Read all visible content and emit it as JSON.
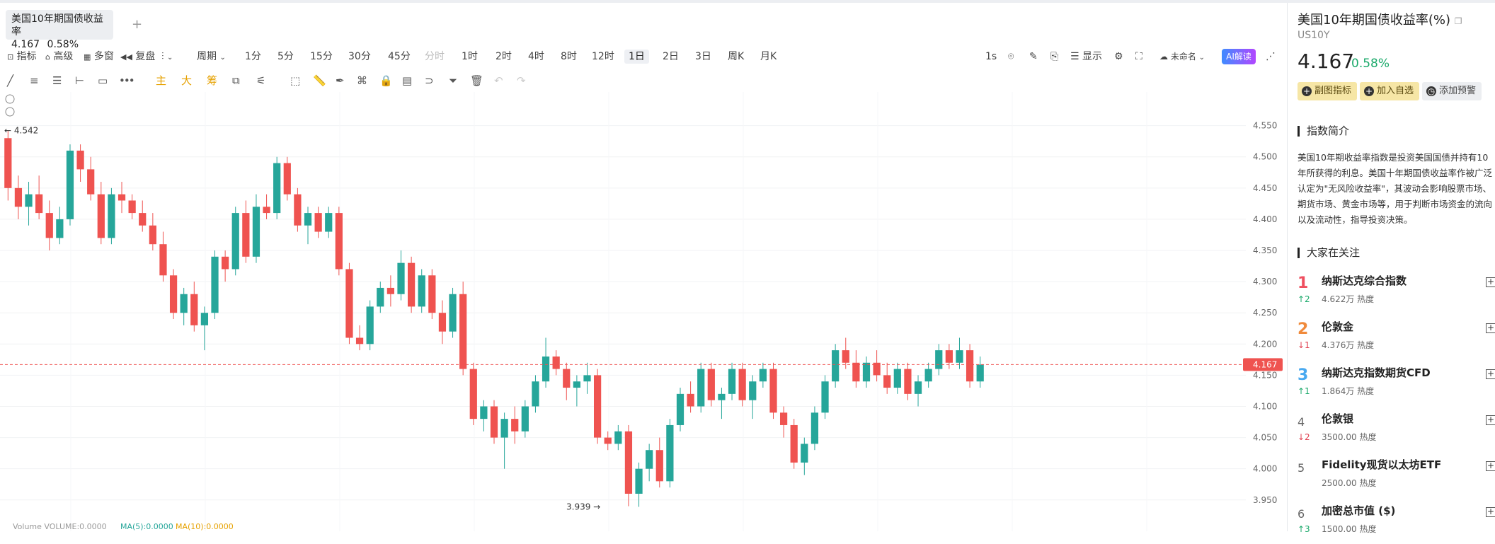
{
  "tab": {
    "name": "美国10年期国债收益率",
    "price": "4.167",
    "change": "0.58%"
  },
  "toolbar": {
    "indicator": "指标",
    "advanced": "高级",
    "multi_window": "多窗",
    "replay": "复盘",
    "period": "周期",
    "intervals": [
      "分时",
      "1分",
      "5分",
      "15分",
      "30分",
      "45分",
      "1时",
      "2时",
      "4时",
      "8时",
      "12时",
      "1日",
      "2日",
      "3日",
      "周K",
      "月K"
    ],
    "active_interval": "1日",
    "refresh": "1s",
    "display": "显示",
    "unnamed": "未命名",
    "ai": "AI解读"
  },
  "drawbar": {
    "main": "主",
    "big": "大",
    "chips": "筹"
  },
  "chart_data": {
    "type": "candlestick",
    "y_ticks": [
      "4.550",
      "4.500",
      "4.450",
      "4.400",
      "4.350",
      "4.300",
      "4.250",
      "4.200",
      "4.150",
      "4.100",
      "4.050",
      "4.000",
      "3.950"
    ],
    "ylim": [
      3.935,
      4.57
    ],
    "current_price": "4.167",
    "high_label": "4.542",
    "low_label": "3.939",
    "up_color": "#26a69a",
    "down_color": "#ef5350",
    "ohlc": [
      [
        4.53,
        4.542,
        4.43,
        4.45
      ],
      [
        4.45,
        4.47,
        4.4,
        4.42
      ],
      [
        4.42,
        4.46,
        4.39,
        4.44
      ],
      [
        4.44,
        4.47,
        4.4,
        4.41
      ],
      [
        4.41,
        4.43,
        4.35,
        4.37
      ],
      [
        4.37,
        4.42,
        4.36,
        4.4
      ],
      [
        4.4,
        4.52,
        4.39,
        4.51
      ],
      [
        4.51,
        4.52,
        4.46,
        4.48
      ],
      [
        4.48,
        4.5,
        4.43,
        4.44
      ],
      [
        4.44,
        4.46,
        4.36,
        4.37
      ],
      [
        4.37,
        4.45,
        4.36,
        4.44
      ],
      [
        4.44,
        4.46,
        4.41,
        4.43
      ],
      [
        4.43,
        4.44,
        4.4,
        4.41
      ],
      [
        4.41,
        4.43,
        4.38,
        4.39
      ],
      [
        4.39,
        4.41,
        4.35,
        4.36
      ],
      [
        4.36,
        4.38,
        4.3,
        4.31
      ],
      [
        4.31,
        4.32,
        4.24,
        4.25
      ],
      [
        4.25,
        4.29,
        4.23,
        4.28
      ],
      [
        4.28,
        4.3,
        4.22,
        4.23
      ],
      [
        4.23,
        4.26,
        4.19,
        4.25
      ],
      [
        4.25,
        4.35,
        4.24,
        4.34
      ],
      [
        4.34,
        4.35,
        4.3,
        4.32
      ],
      [
        4.32,
        4.42,
        4.31,
        4.41
      ],
      [
        4.41,
        4.43,
        4.33,
        4.34
      ],
      [
        4.34,
        4.44,
        4.33,
        4.42
      ],
      [
        4.42,
        4.44,
        4.4,
        4.41
      ],
      [
        4.41,
        4.5,
        4.4,
        4.49
      ],
      [
        4.49,
        4.5,
        4.43,
        4.44
      ],
      [
        4.44,
        4.45,
        4.38,
        4.39
      ],
      [
        4.39,
        4.42,
        4.36,
        4.41
      ],
      [
        4.41,
        4.42,
        4.37,
        4.38
      ],
      [
        4.38,
        4.42,
        4.37,
        4.41
      ],
      [
        4.41,
        4.42,
        4.31,
        4.32
      ],
      [
        4.32,
        4.33,
        4.2,
        4.21
      ],
      [
        4.21,
        4.23,
        4.19,
        4.2
      ],
      [
        4.2,
        4.27,
        4.19,
        4.26
      ],
      [
        4.26,
        4.3,
        4.25,
        4.29
      ],
      [
        4.29,
        4.31,
        4.26,
        4.28
      ],
      [
        4.28,
        4.35,
        4.27,
        4.33
      ],
      [
        4.33,
        4.34,
        4.25,
        4.26
      ],
      [
        4.26,
        4.32,
        4.25,
        4.31
      ],
      [
        4.31,
        4.32,
        4.24,
        4.25
      ],
      [
        4.25,
        4.27,
        4.2,
        4.22
      ],
      [
        4.22,
        4.29,
        4.21,
        4.28
      ],
      [
        4.28,
        4.3,
        4.15,
        4.16
      ],
      [
        4.16,
        4.17,
        4.07,
        4.08
      ],
      [
        4.08,
        4.11,
        4.06,
        4.1
      ],
      [
        4.1,
        4.11,
        4.04,
        4.05
      ],
      [
        4.05,
        4.09,
        4.0,
        4.08
      ],
      [
        4.08,
        4.1,
        4.04,
        4.06
      ],
      [
        4.06,
        4.11,
        4.05,
        4.1
      ],
      [
        4.1,
        4.15,
        4.09,
        4.14
      ],
      [
        4.14,
        4.21,
        4.13,
        4.18
      ],
      [
        4.18,
        4.19,
        4.15,
        4.16
      ],
      [
        4.16,
        4.17,
        4.11,
        4.13
      ],
      [
        4.13,
        4.15,
        4.1,
        4.14
      ],
      [
        4.14,
        4.17,
        4.12,
        4.15
      ],
      [
        4.15,
        4.16,
        4.04,
        4.05
      ],
      [
        4.05,
        4.06,
        4.03,
        4.04
      ],
      [
        4.04,
        4.07,
        4.03,
        4.06
      ],
      [
        4.06,
        4.07,
        3.94,
        3.96
      ],
      [
        3.96,
        4.01,
        3.939,
        4.0
      ],
      [
        4.0,
        4.04,
        3.98,
        4.03
      ],
      [
        4.03,
        4.05,
        3.97,
        3.98
      ],
      [
        3.98,
        4.08,
        3.97,
        4.07
      ],
      [
        4.07,
        4.13,
        4.06,
        4.12
      ],
      [
        4.12,
        4.14,
        4.09,
        4.1
      ],
      [
        4.1,
        4.17,
        4.09,
        4.16
      ],
      [
        4.16,
        4.17,
        4.1,
        4.11
      ],
      [
        4.11,
        4.13,
        4.08,
        4.12
      ],
      [
        4.12,
        4.17,
        4.11,
        4.16
      ],
      [
        4.16,
        4.17,
        4.1,
        4.11
      ],
      [
        4.11,
        4.15,
        4.08,
        4.14
      ],
      [
        4.14,
        4.17,
        4.13,
        4.16
      ],
      [
        4.16,
        4.17,
        4.08,
        4.09
      ],
      [
        4.09,
        4.1,
        4.05,
        4.07
      ],
      [
        4.07,
        4.08,
        4.0,
        4.01
      ],
      [
        4.01,
        4.05,
        3.99,
        4.04
      ],
      [
        4.04,
        4.1,
        4.03,
        4.09
      ],
      [
        4.09,
        4.15,
        4.08,
        4.14
      ],
      [
        4.14,
        4.2,
        4.13,
        4.19
      ],
      [
        4.19,
        4.21,
        4.16,
        4.17
      ],
      [
        4.17,
        4.19,
        4.13,
        4.14
      ],
      [
        4.14,
        4.18,
        4.13,
        4.17
      ],
      [
        4.17,
        4.19,
        4.14,
        4.15
      ],
      [
        4.15,
        4.17,
        4.12,
        4.13
      ],
      [
        4.13,
        4.17,
        4.12,
        4.16
      ],
      [
        4.16,
        4.17,
        4.11,
        4.12
      ],
      [
        4.12,
        4.15,
        4.1,
        4.14
      ],
      [
        4.14,
        4.17,
        4.13,
        4.16
      ],
      [
        4.16,
        4.2,
        4.15,
        4.19
      ],
      [
        4.19,
        4.2,
        4.16,
        4.17
      ],
      [
        4.17,
        4.21,
        4.16,
        4.19
      ],
      [
        4.19,
        4.2,
        4.13,
        4.14
      ],
      [
        4.14,
        4.18,
        4.13,
        4.167
      ]
    ]
  },
  "chart_meta": {
    "volume_label": "Volume VOLUME:0.0000",
    "ma5_label": "MA(5):0.0000",
    "ma10_label": "MA(10):0.0000"
  },
  "sidebar": {
    "title": "美国10年期国债收益率(%)",
    "symbol": "US10Y",
    "price": "4.167",
    "change": "0.58%",
    "buttons": [
      "副图指标",
      "加入自选",
      "添加预警"
    ],
    "intro_title": "指数简介",
    "intro_text": "美国10年期收益率指数是投资美国国债并持有10年所获得的利息。美国十年期国债收益率作被广泛认定为\"无风险收益率\"，其波动会影响股票市场、期货市场、黄金市场等，用于判断市场资金的流向以及流动性，指导投资决策。",
    "watch_title": "大家在关注",
    "watch": [
      {
        "rank": "1",
        "move": "↑2",
        "dir": "up",
        "name": "纳斯达克综合指数",
        "heat": "4.622万 热度",
        "color": "#ef4f5f"
      },
      {
        "rank": "2",
        "move": "↓1",
        "dir": "dn",
        "name": "伦敦金",
        "heat": "4.376万 热度",
        "color": "#f08a3b"
      },
      {
        "rank": "3",
        "move": "↑1",
        "dir": "up",
        "name": "纳斯达克指数期货CFD",
        "heat": "1.864万 热度",
        "color": "#49a9f0"
      },
      {
        "rank": "4",
        "move": "↓2",
        "dir": "dn",
        "name": "伦敦银",
        "heat": "3500.00 热度",
        "color": "#666666"
      },
      {
        "rank": "5",
        "move": "",
        "dir": "",
        "name": "Fidelity现货以太坊ETF",
        "heat": "2500.00 热度",
        "color": "#666666"
      },
      {
        "rank": "6",
        "move": "↑3",
        "dir": "up",
        "name": "加密总市值 ($)",
        "heat": "1500.00 热度",
        "color": "#666666"
      }
    ]
  }
}
